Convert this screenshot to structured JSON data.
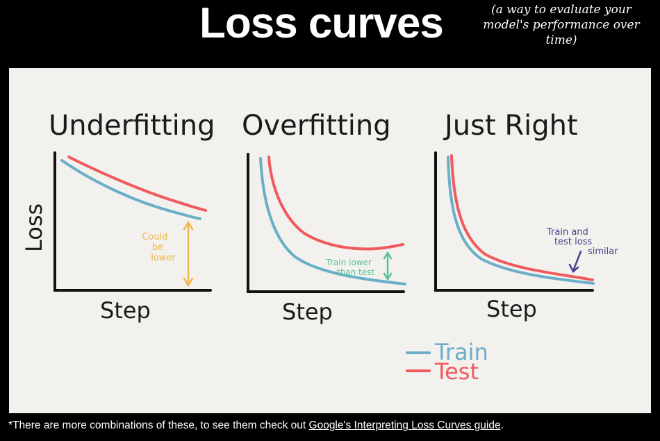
{
  "header": {
    "title": "Loss curves",
    "subtitle_lines": [
      "(a way to evaluate your",
      "model's performance over",
      "time)"
    ]
  },
  "panels": [
    {
      "name": "underfitting",
      "title": "Underfitting",
      "xlabel": "Step",
      "ylabel": "Loss",
      "annotation_lines": [
        "Could",
        "be",
        "lower"
      ]
    },
    {
      "name": "overfitting",
      "title": "Overfitting",
      "xlabel": "Step",
      "annotation_lines": [
        "Train lower",
        "than test"
      ]
    },
    {
      "name": "just-right",
      "title": "Just Right",
      "xlabel": "Step",
      "annotation_lines": [
        "Train and",
        "test loss",
        "similar"
      ]
    }
  ],
  "legend": [
    {
      "label": "Train",
      "color": "#6aaec8"
    },
    {
      "label": "Test",
      "color": "#ef5a5e"
    }
  ],
  "colors": {
    "train": "#6aaec8",
    "test": "#ef5a5e",
    "could_be_lower": "#f3b64b",
    "train_lower": "#58c497",
    "similar": "#4c3d8c"
  },
  "footnote": {
    "prefix": "*There are more combinations of these, to see them check out ",
    "link_text": "Google's Interpreting Loss Curves guide",
    "suffix": "."
  }
}
